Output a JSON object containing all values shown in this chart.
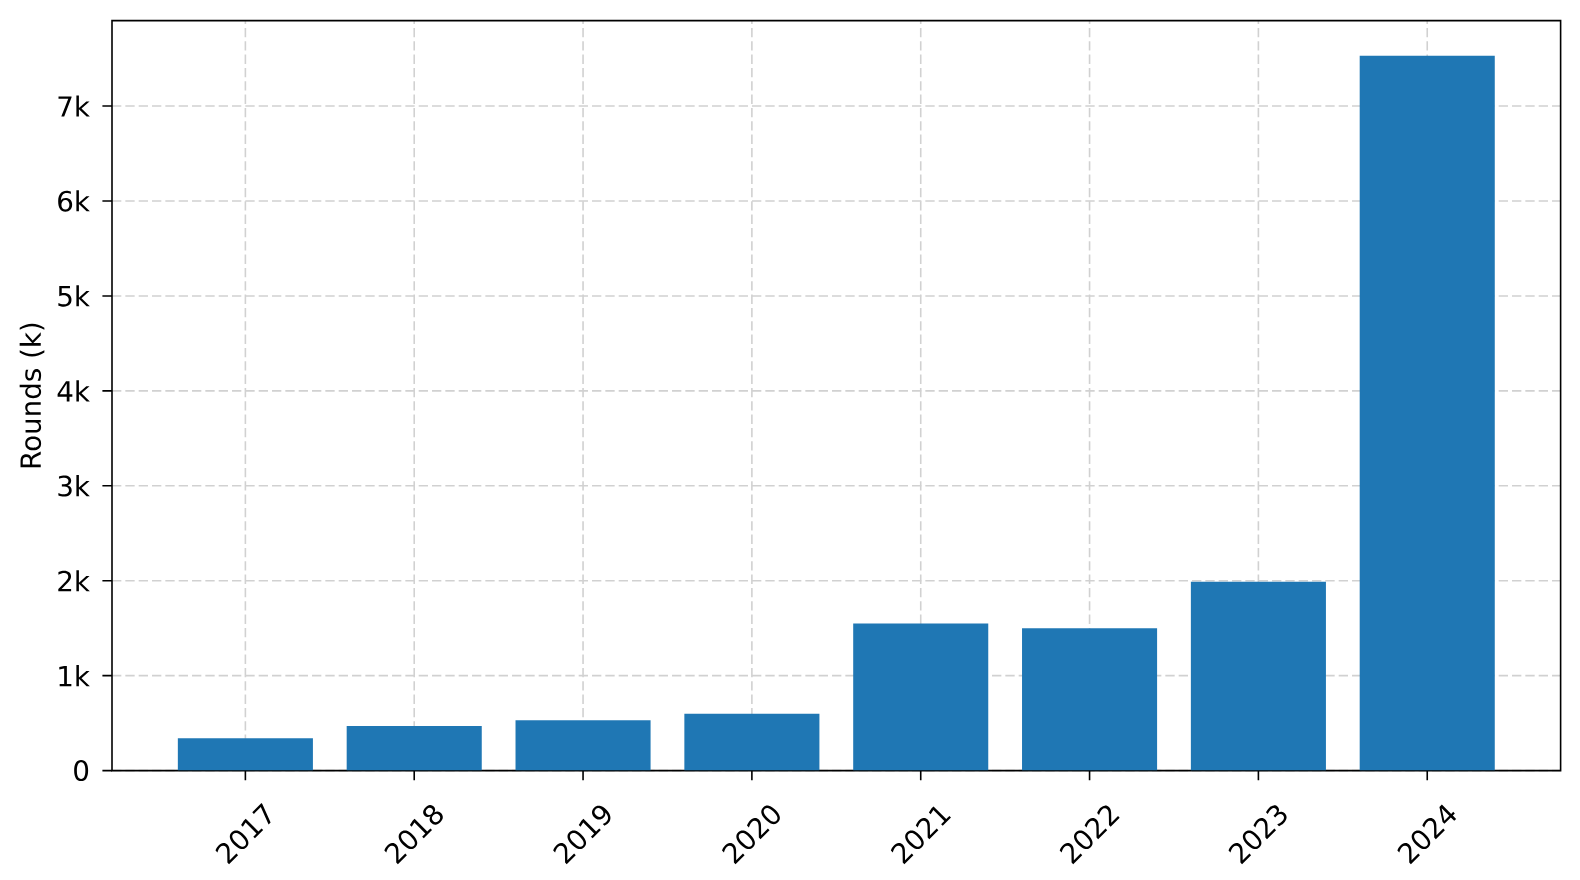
{
  "chart_data": {
    "type": "bar",
    "ylabel": "Rounds (k)",
    "categories": [
      "2017",
      "2018",
      "2019",
      "2020",
      "2021",
      "2022",
      "2023",
      "2024"
    ],
    "values": [
      0.34,
      0.47,
      0.53,
      0.6,
      1.55,
      1.5,
      1.99,
      7.53
    ],
    "color": "#1f77b4",
    "ylim": [
      0,
      7.9
    ],
    "yticks": [
      0,
      {
        "value": 1,
        "label": "1k"
      },
      {
        "value": 2,
        "label": "2k"
      },
      {
        "value": 3,
        "label": "3k"
      },
      {
        "value": 4,
        "label": "4k"
      },
      {
        "value": 5,
        "label": "5k"
      },
      {
        "value": 6,
        "label": "6k"
      },
      {
        "value": 7,
        "label": "7k"
      }
    ],
    "grid": true
  }
}
